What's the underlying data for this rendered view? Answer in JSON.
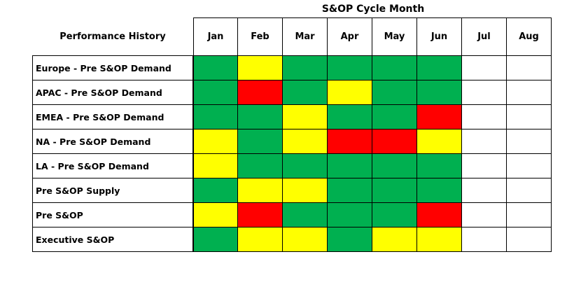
{
  "chart_data": {
    "type": "heatmap",
    "title": "S&OP Cycle Month",
    "row_header": "Performance History",
    "columns": [
      "Jan",
      "Feb",
      "Mar",
      "Apr",
      "May",
      "Jun",
      "Jul",
      "Aug"
    ],
    "rows": [
      "Europe - Pre S&OP Demand",
      "APAC - Pre S&OP Demand",
      "EMEA - Pre S&OP Demand",
      "NA - Pre S&OP Demand",
      "LA - Pre S&OP Demand",
      "Pre S&OP Supply",
      "Pre S&OP",
      "Executive S&OP"
    ],
    "values": [
      [
        "green",
        "yellow",
        "green",
        "green",
        "green",
        "green",
        "empty",
        "empty"
      ],
      [
        "green",
        "red",
        "green",
        "yellow",
        "green",
        "green",
        "empty",
        "empty"
      ],
      [
        "green",
        "green",
        "yellow",
        "green",
        "green",
        "red",
        "empty",
        "empty"
      ],
      [
        "yellow",
        "green",
        "yellow",
        "red",
        "red",
        "yellow",
        "empty",
        "empty"
      ],
      [
        "yellow",
        "green",
        "green",
        "green",
        "green",
        "green",
        "empty",
        "empty"
      ],
      [
        "green",
        "yellow",
        "yellow",
        "green",
        "green",
        "green",
        "empty",
        "empty"
      ],
      [
        "yellow",
        "red",
        "green",
        "green",
        "green",
        "red",
        "empty",
        "empty"
      ],
      [
        "green",
        "yellow",
        "yellow",
        "green",
        "yellow",
        "yellow",
        "empty",
        "empty"
      ]
    ],
    "colors": {
      "green": "#00b050",
      "yellow": "#ffff00",
      "red": "#ff0000",
      "empty": "#ffffff"
    }
  }
}
